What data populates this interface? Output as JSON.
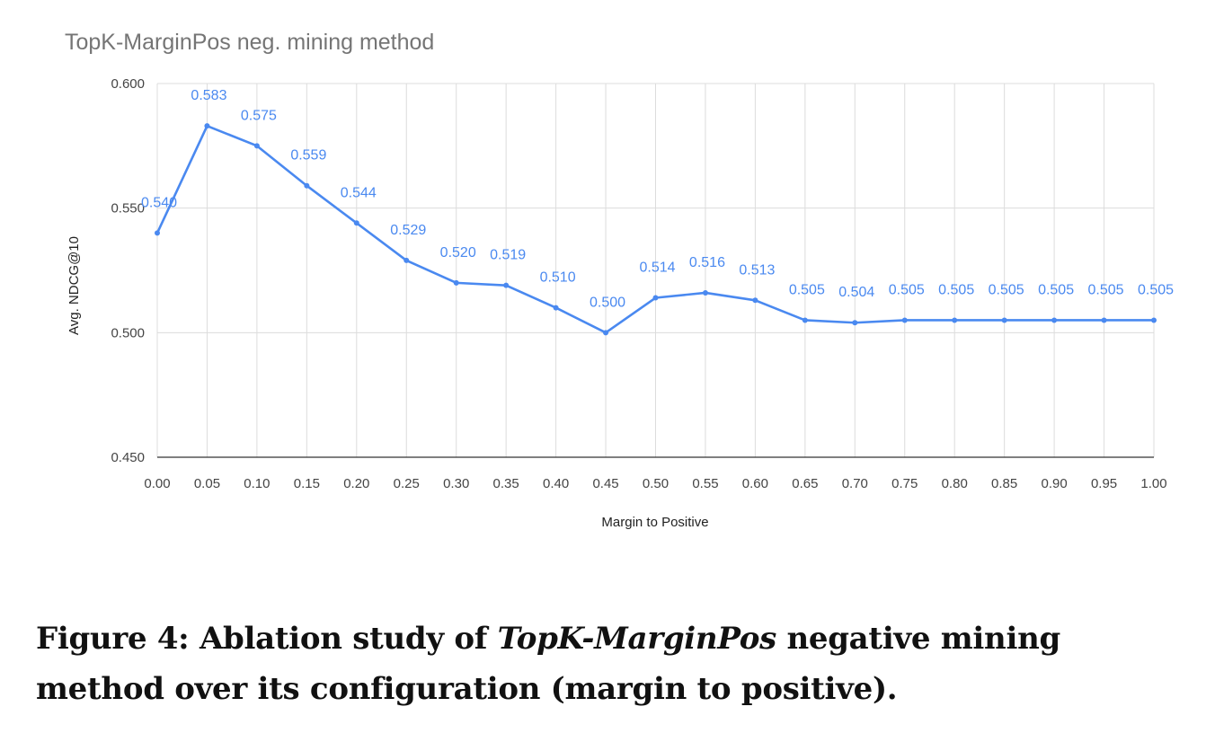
{
  "chart_data": {
    "type": "line",
    "title": "TopK-MarginPos neg. mining method",
    "xlabel": "Margin to Positive",
    "ylabel": "Avg. NDCG@10",
    "ylim": [
      0.45,
      0.6
    ],
    "yticks": [
      "0.450",
      "0.500",
      "0.550",
      "0.600"
    ],
    "categories": [
      "0.00",
      "0.05",
      "0.10",
      "0.15",
      "0.20",
      "0.25",
      "0.30",
      "0.35",
      "0.40",
      "0.45",
      "0.50",
      "0.55",
      "0.60",
      "0.65",
      "0.70",
      "0.75",
      "0.80",
      "0.85",
      "0.90",
      "0.95",
      "1.00"
    ],
    "series": [
      {
        "name": "Avg. NDCG@10",
        "color": "#4a89f0",
        "values": [
          0.54,
          0.583,
          0.575,
          0.559,
          0.544,
          0.529,
          0.52,
          0.519,
          0.51,
          0.5,
          0.514,
          0.516,
          0.513,
          0.505,
          0.504,
          0.505,
          0.505,
          0.505,
          0.505,
          0.505,
          0.505
        ],
        "labels": [
          "0.540",
          "0.583",
          "0.575",
          "0.559",
          "0.544",
          "0.529",
          "0.520",
          "0.519",
          "0.510",
          "0.500",
          "0.514",
          "0.516",
          "0.513",
          "0.505",
          "0.504",
          "0.505",
          "0.505",
          "0.505",
          "0.505",
          "0.505",
          "0.505"
        ]
      }
    ],
    "grid": true,
    "legend": "none"
  },
  "caption": {
    "prefix": "Figure 4: Ablation study of ",
    "method": "TopK-MarginPos",
    "suffix": " negative mining method over its configuration (margin to positive)."
  }
}
